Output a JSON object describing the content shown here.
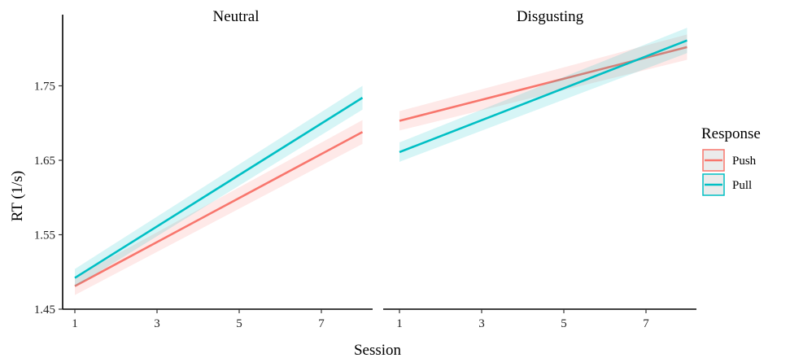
{
  "chart_data": {
    "type": "line",
    "xlabel": "Session",
    "ylabel": "RT (1/s)",
    "ylim": [
      1.45,
      1.85
    ],
    "xlim": [
      0.5,
      8.5
    ],
    "x_ticks": [
      1,
      3,
      5,
      7
    ],
    "y_ticks": [
      1.45,
      1.55,
      1.65,
      1.75
    ],
    "y_tick_labels": [
      "1.45",
      "1.55",
      "1.65",
      "1.75"
    ],
    "grid": false,
    "confidence_bands": true,
    "legend": {
      "title": "Response",
      "position": "right",
      "entries": [
        {
          "name": "Push",
          "color": "#F8766D"
        },
        {
          "name": "Pull",
          "color": "#00BFC4"
        }
      ]
    },
    "facets": [
      {
        "title": "Neutral",
        "series": [
          {
            "name": "Push",
            "color": "#F8766D",
            "x": [
              1,
              8
            ],
            "y": [
              1.481,
              1.688
            ],
            "ci": [
              0.012,
              0.016
            ]
          },
          {
            "name": "Pull",
            "color": "#00BFC4",
            "x": [
              1,
              8
            ],
            "y": [
              1.492,
              1.734
            ],
            "ci": [
              0.012,
              0.016
            ]
          }
        ]
      },
      {
        "title": "Disgusting",
        "series": [
          {
            "name": "Push",
            "color": "#F8766D",
            "x": [
              1,
              8
            ],
            "y": [
              1.703,
              1.802
            ],
            "ci": [
              0.013,
              0.017
            ]
          },
          {
            "name": "Pull",
            "color": "#00BFC4",
            "x": [
              1,
              8
            ],
            "y": [
              1.661,
              1.811
            ],
            "ci": [
              0.013,
              0.017
            ]
          }
        ]
      }
    ]
  }
}
